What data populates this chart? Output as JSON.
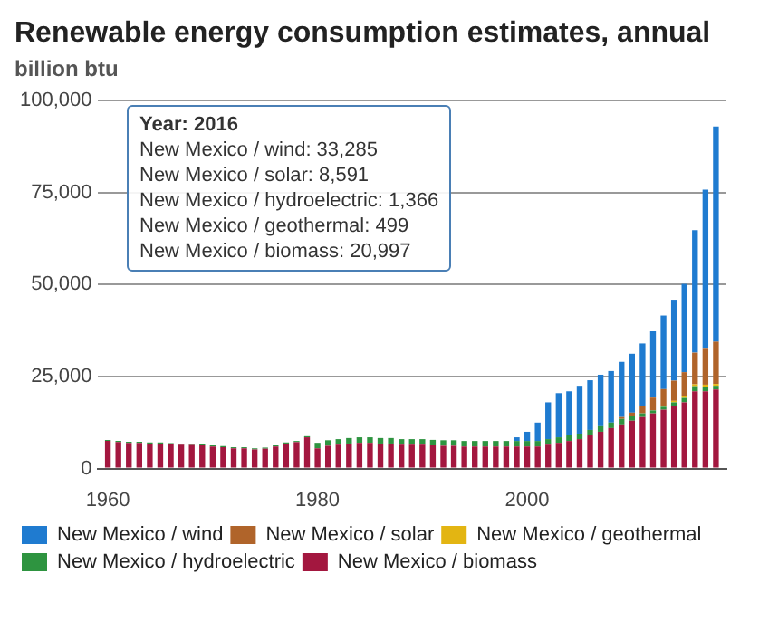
{
  "chart_data": {
    "type": "bar",
    "title": "Renewable energy consumption estimates, annual",
    "ylabel": "billion btu",
    "stacked": true,
    "x": [
      1960,
      1961,
      1962,
      1963,
      1964,
      1965,
      1966,
      1967,
      1968,
      1969,
      1970,
      1971,
      1972,
      1973,
      1974,
      1975,
      1976,
      1977,
      1978,
      1979,
      1980,
      1981,
      1982,
      1983,
      1984,
      1985,
      1986,
      1987,
      1988,
      1989,
      1990,
      1991,
      1992,
      1993,
      1994,
      1995,
      1996,
      1997,
      1998,
      1999,
      2000,
      2001,
      2002,
      2003,
      2004,
      2005,
      2006,
      2007,
      2008,
      2009,
      2010,
      2011,
      2012,
      2013,
      2014,
      2015,
      2016,
      2017,
      2018
    ],
    "xlim": [
      1959,
      2019
    ],
    "xticks": [
      1960,
      1980,
      2000
    ],
    "ylim": [
      0,
      100000
    ],
    "yticks": [
      0,
      {
        "value": 25000,
        "label": "25,000"
      },
      {
        "value": 50000,
        "label": "50,000"
      },
      {
        "value": 75000,
        "label": "75,000"
      },
      {
        "value": 100000,
        "label": "100,000"
      }
    ],
    "grid": "y",
    "legend": "bottom",
    "series": [
      {
        "name": "New Mexico / biomass",
        "color": "#a3173f",
        "values": [
          7500,
          7200,
          7000,
          7000,
          6800,
          6800,
          6600,
          6500,
          6400,
          6300,
          6000,
          5800,
          5500,
          5500,
          5200,
          5400,
          6000,
          6800,
          7200,
          8500,
          5500,
          6200,
          6500,
          6800,
          7000,
          7000,
          6800,
          6800,
          6500,
          6500,
          6500,
          6300,
          6200,
          6200,
          6000,
          6000,
          6000,
          6000,
          6000,
          6000,
          6000,
          6000,
          6500,
          7000,
          7500,
          8000,
          9000,
          10000,
          11000,
          12000,
          13000,
          14000,
          15000,
          16000,
          17000,
          18000,
          21000,
          21000,
          21500
        ]
      },
      {
        "name": "New Mexico / hydroelectric",
        "color": "#2e9440",
        "values": [
          300,
          300,
          300,
          300,
          300,
          300,
          300,
          300,
          300,
          300,
          300,
          300,
          300,
          300,
          300,
          300,
          300,
          300,
          300,
          300,
          1500,
          1500,
          1500,
          1500,
          1500,
          1500,
          1500,
          1500,
          1500,
          1500,
          1500,
          1500,
          1500,
          1500,
          1500,
          1500,
          1500,
          1500,
          1500,
          1500,
          1500,
          1500,
          1500,
          1500,
          1500,
          1500,
          1500,
          1500,
          1500,
          1500,
          1200,
          1000,
          800,
          800,
          1000,
          1200,
          1400,
          1300,
          1000
        ]
      },
      {
        "name": "New Mexico / geothermal",
        "color": "#e3b512",
        "values": [
          null,
          null,
          null,
          null,
          null,
          null,
          null,
          null,
          null,
          null,
          null,
          null,
          null,
          null,
          null,
          null,
          null,
          null,
          null,
          null,
          null,
          null,
          null,
          null,
          null,
          null,
          null,
          null,
          null,
          null,
          null,
          null,
          null,
          null,
          null,
          null,
          null,
          null,
          null,
          null,
          null,
          null,
          null,
          null,
          null,
          null,
          null,
          null,
          null,
          null,
          null,
          null,
          null,
          300,
          400,
          500,
          500,
          500,
          500
        ]
      },
      {
        "name": "New Mexico / solar",
        "color": "#b0642a",
        "values": [
          null,
          null,
          null,
          null,
          null,
          null,
          null,
          null,
          null,
          null,
          null,
          null,
          null,
          null,
          null,
          null,
          null,
          null,
          null,
          null,
          null,
          null,
          null,
          null,
          null,
          null,
          null,
          null,
          null,
          null,
          null,
          null,
          null,
          null,
          null,
          null,
          null,
          null,
          null,
          null,
          null,
          null,
          null,
          null,
          null,
          null,
          null,
          null,
          null,
          500,
          1000,
          2000,
          3500,
          4500,
          5500,
          6500,
          8600,
          10000,
          11500
        ]
      },
      {
        "name": "New Mexico / wind",
        "color": "#1f7bd0",
        "values": [
          null,
          null,
          null,
          null,
          null,
          null,
          null,
          null,
          null,
          null,
          null,
          null,
          null,
          null,
          null,
          null,
          null,
          null,
          null,
          null,
          null,
          null,
          null,
          null,
          null,
          null,
          null,
          null,
          null,
          null,
          null,
          null,
          null,
          null,
          null,
          null,
          null,
          null,
          null,
          1000,
          2500,
          5000,
          10000,
          12000,
          12000,
          13000,
          13500,
          14000,
          14000,
          15000,
          16000,
          17000,
          18000,
          20000,
          22000,
          24000,
          33300,
          43000,
          58500
        ]
      }
    ],
    "annotations": [
      "Year: 2016",
      "New Mexico / wind: 33,285",
      "New Mexico / solar: 8,591",
      "New Mexico / hydroelectric: 1,366",
      "New Mexico / geothermal: 499",
      "New Mexico / biomass: 20,997"
    ]
  }
}
